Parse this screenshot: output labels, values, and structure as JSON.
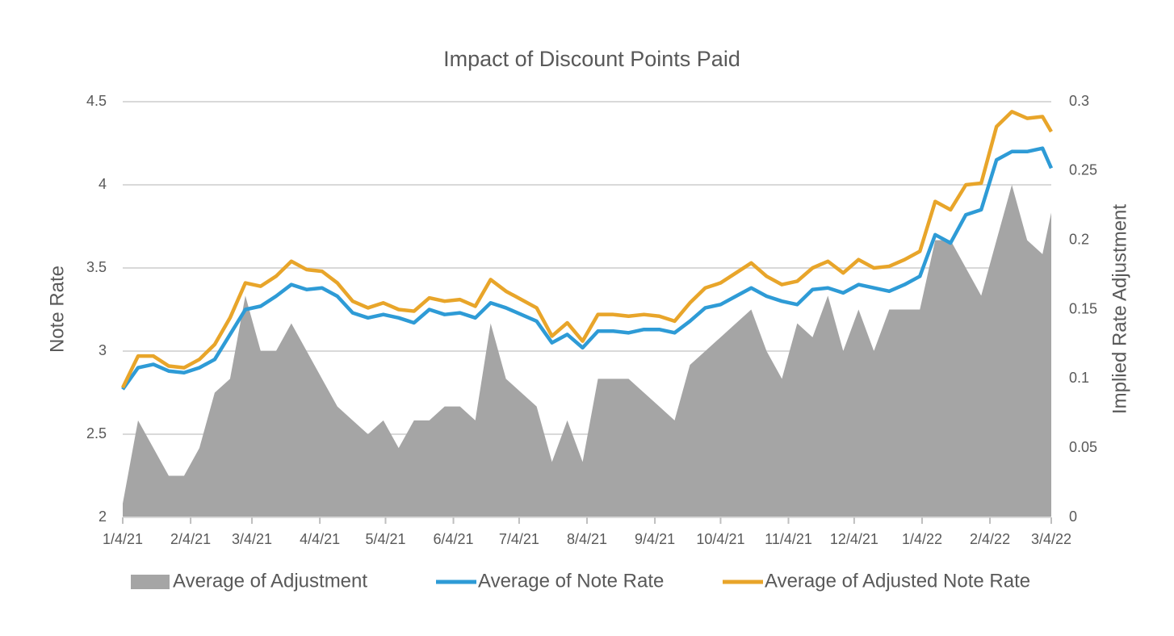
{
  "chart_data": {
    "type": "line",
    "title": "Impact of Discount Points Paid",
    "y_label": "Note Rate",
    "y2_label": "Implied Rate Adjustment",
    "x": [
      "1/4/21",
      "1/11/21",
      "1/18/21",
      "1/25/21",
      "2/1/21",
      "2/8/21",
      "2/15/21",
      "2/22/21",
      "3/1/21",
      "3/8/21",
      "3/15/21",
      "3/22/21",
      "3/29/21",
      "4/5/21",
      "4/12/21",
      "4/19/21",
      "4/26/21",
      "5/3/21",
      "5/10/21",
      "5/17/21",
      "5/24/21",
      "5/31/21",
      "6/7/21",
      "6/14/21",
      "6/21/21",
      "6/28/21",
      "7/5/21",
      "7/12/21",
      "7/19/21",
      "7/26/21",
      "8/2/21",
      "8/9/21",
      "8/16/21",
      "8/23/21",
      "8/30/21",
      "9/6/21",
      "9/13/21",
      "9/20/21",
      "9/27/21",
      "10/4/21",
      "10/11/21",
      "10/18/21",
      "10/25/21",
      "11/1/21",
      "11/8/21",
      "11/15/21",
      "11/22/21",
      "11/29/21",
      "12/6/21",
      "12/13/21",
      "12/20/21",
      "12/27/21",
      "1/3/22",
      "1/10/22",
      "1/17/22",
      "1/24/22",
      "1/31/22",
      "2/7/22",
      "2/14/22",
      "2/21/22",
      "2/28/22",
      "3/4/22"
    ],
    "series": [
      {
        "name": "Average of Adjustment",
        "type": "area",
        "axis": "y2",
        "color": "#a5a5a5",
        "values": [
          0.01,
          0.07,
          0.05,
          0.03,
          0.03,
          0.05,
          0.09,
          0.1,
          0.16,
          0.12,
          0.12,
          0.14,
          0.12,
          0.1,
          0.08,
          0.07,
          0.06,
          0.07,
          0.05,
          0.07,
          0.07,
          0.08,
          0.08,
          0.07,
          0.14,
          0.1,
          0.09,
          0.08,
          0.04,
          0.07,
          0.04,
          0.1,
          0.1,
          0.1,
          0.09,
          0.08,
          0.07,
          0.11,
          0.12,
          0.13,
          0.14,
          0.15,
          0.12,
          0.1,
          0.14,
          0.13,
          0.16,
          0.12,
          0.15,
          0.12,
          0.15,
          0.15,
          0.15,
          0.2,
          0.2,
          0.18,
          0.16,
          0.2,
          0.24,
          0.2,
          0.19,
          0.22
        ]
      },
      {
        "name": "Average of Note Rate",
        "type": "line",
        "color": "#2e9bd6",
        "values": [
          2.77,
          2.9,
          2.92,
          2.88,
          2.87,
          2.9,
          2.95,
          3.1,
          3.25,
          3.27,
          3.33,
          3.4,
          3.37,
          3.38,
          3.33,
          3.23,
          3.2,
          3.22,
          3.2,
          3.17,
          3.25,
          3.22,
          3.23,
          3.2,
          3.29,
          3.26,
          3.22,
          3.18,
          3.05,
          3.1,
          3.02,
          3.12,
          3.12,
          3.11,
          3.13,
          3.13,
          3.11,
          3.18,
          3.26,
          3.28,
          3.33,
          3.38,
          3.33,
          3.3,
          3.28,
          3.37,
          3.38,
          3.35,
          3.4,
          3.38,
          3.36,
          3.4,
          3.45,
          3.7,
          3.65,
          3.82,
          3.85,
          4.15,
          4.2,
          4.2,
          4.22,
          4.1
        ]
      },
      {
        "name": "Average of Adjusted Note Rate",
        "type": "line",
        "color": "#e8a52a",
        "values": [
          2.78,
          2.97,
          2.97,
          2.91,
          2.9,
          2.95,
          3.04,
          3.2,
          3.41,
          3.39,
          3.45,
          3.54,
          3.49,
          3.48,
          3.41,
          3.3,
          3.26,
          3.29,
          3.25,
          3.24,
          3.32,
          3.3,
          3.31,
          3.27,
          3.43,
          3.36,
          3.31,
          3.26,
          3.09,
          3.17,
          3.06,
          3.22,
          3.22,
          3.21,
          3.22,
          3.21,
          3.18,
          3.29,
          3.38,
          3.41,
          3.47,
          3.53,
          3.45,
          3.4,
          3.42,
          3.5,
          3.54,
          3.47,
          3.55,
          3.5,
          3.51,
          3.55,
          3.6,
          3.9,
          3.85,
          4.0,
          4.01,
          4.35,
          4.44,
          4.4,
          4.41,
          4.32
        ]
      }
    ],
    "xlim": [
      "1/4/21",
      "3/4/22"
    ],
    "xticks": [
      "1/4/21",
      "2/4/21",
      "3/4/21",
      "4/4/21",
      "5/4/21",
      "6/4/21",
      "7/4/21",
      "8/4/21",
      "9/4/21",
      "10/4/21",
      "11/4/21",
      "12/4/21",
      "1/4/22",
      "2/4/22",
      "3/4/22"
    ],
    "ylim": [
      2,
      4.5
    ],
    "yticks": [
      2,
      2.5,
      3,
      3.5,
      4,
      4.5
    ],
    "y2lim": [
      0,
      0.3
    ],
    "y2ticks": [
      0,
      0.05,
      0.1,
      0.15,
      0.2,
      0.25,
      0.3
    ],
    "grid": true,
    "legend": "bottom"
  }
}
